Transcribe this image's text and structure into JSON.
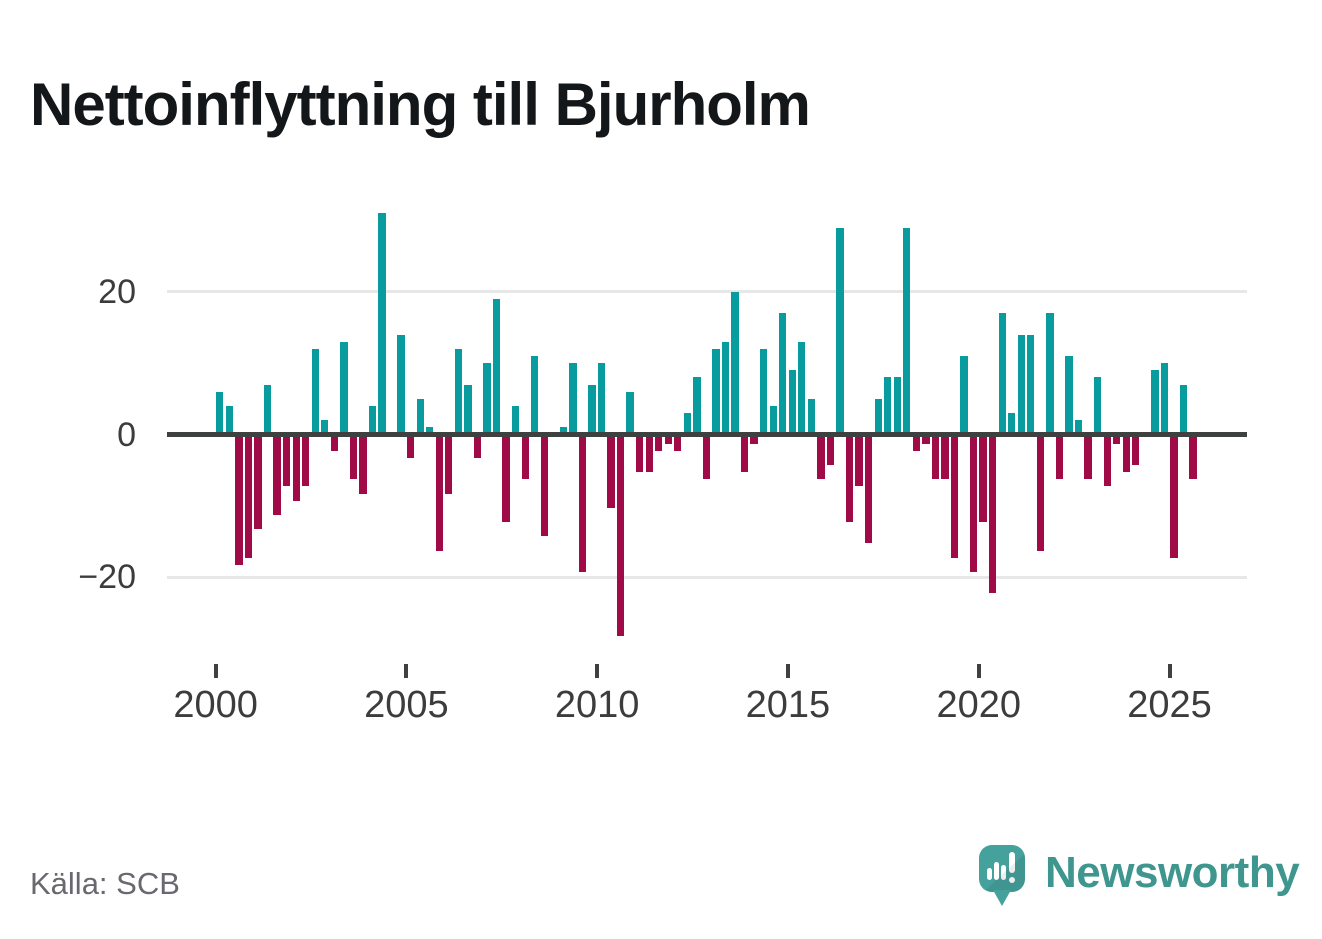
{
  "title": "Nettoinflyttning till Bjurholm",
  "source": "Källa: SCB",
  "branding": {
    "wordmark": "Newsworthy",
    "icon": "newsworthy-speech-bubble-chart-icon",
    "wordmark_color": "#3e968f",
    "bubble_color": "#45a19b"
  },
  "y_axis": {
    "tick_labels": [
      "20",
      "0",
      "−20"
    ],
    "tick_values": [
      20,
      0,
      -20
    ]
  },
  "x_axis": {
    "tick_labels": [
      "2000",
      "2005",
      "2010",
      "2015",
      "2020",
      "2025"
    ]
  },
  "colors": {
    "positive_bar": "#089c9e",
    "negative_bar": "#a00a46",
    "axis_line": "#3f4040",
    "gridline": "#e7e7e7",
    "axis_label": "#3c3c3c",
    "title_text": "#131719",
    "source_text": "#68686f"
  },
  "chart_data": {
    "type": "bar",
    "title": "Nettoinflyttning till Bjurholm",
    "frequency": "quarterly",
    "first_period": "2000-Q1",
    "last_period": "2025-Q3",
    "xlabel": "",
    "ylabel": "",
    "ylim": [
      -30,
      33
    ],
    "y_gridlines": [
      20,
      -20
    ],
    "x_tick_years": [
      2000,
      2005,
      2010,
      2015,
      2020,
      2025
    ],
    "legend": "none",
    "grid": "horizontal",
    "values": [
      6,
      4,
      -18,
      -17,
      -13,
      7,
      -11,
      -7,
      -9,
      -7,
      12,
      2,
      -2,
      13,
      -6,
      -8,
      4,
      31,
      0,
      14,
      -3,
      5,
      1,
      -16,
      -8,
      12,
      7,
      -3,
      10,
      19,
      -12,
      4,
      -6,
      11,
      -14,
      0,
      1,
      10,
      -19,
      7,
      10,
      -10,
      -28,
      6,
      -5,
      -5,
      -2,
      -1,
      -2,
      3,
      8,
      -6,
      12,
      13,
      20,
      -5,
      -1,
      12,
      4,
      17,
      9,
      13,
      5,
      -6,
      -4,
      29,
      -12,
      -7,
      -15,
      5,
      8,
      8,
      29,
      -2,
      -1,
      -6,
      -6,
      -17,
      11,
      -19,
      -12,
      -22,
      17,
      3,
      14,
      14,
      -16,
      17,
      -6,
      11,
      2,
      -6,
      8,
      -7,
      -1,
      -5,
      -4,
      0,
      9,
      10,
      -17,
      7,
      -6
    ]
  }
}
